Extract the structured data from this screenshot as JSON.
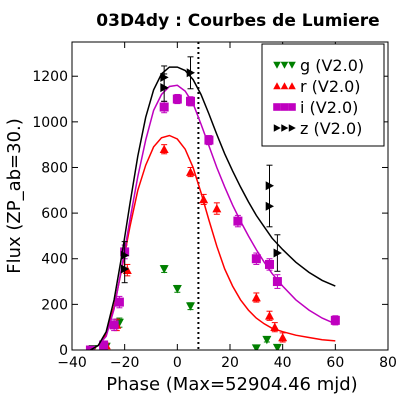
{
  "chart_data": {
    "type": "scatter",
    "title": "03D4dy : Courbes de Lumiere",
    "xlabel": "Phase (Max=52904.46 mjd)",
    "ylabel": "Flux (ZP_ab=30.)",
    "xlim": [
      -40,
      80
    ],
    "ylim": [
      0,
      1350
    ],
    "xticks": [
      -40,
      -20,
      0,
      20,
      40,
      60,
      80
    ],
    "yticks": [
      0,
      200,
      400,
      600,
      800,
      1000,
      1200
    ],
    "xtick_labels": [
      "−40",
      "−20",
      "0",
      "20",
      "40",
      "60",
      "80"
    ],
    "ytick_labels": [
      "0",
      "200",
      "400",
      "600",
      "800",
      "1000",
      "1200"
    ],
    "max_phase_line": 8,
    "grid": false,
    "legend_position": "top-right",
    "series": [
      {
        "name": "g (V2.0)",
        "color": "#008000",
        "marker": "triangle-down",
        "points": [
          [
            -32,
            5,
            6
          ],
          [
            -27,
            15,
            8
          ],
          [
            -22,
            120,
            20
          ],
          [
            -5,
            355,
            15
          ],
          [
            0,
            268,
            15
          ],
          [
            5,
            192,
            15
          ],
          [
            30,
            8,
            10
          ],
          [
            34,
            45,
            10
          ],
          [
            38,
            10,
            10
          ]
        ],
        "curve": []
      },
      {
        "name": "r (V2.0)",
        "color": "#ff0000",
        "marker": "triangle-up",
        "points": [
          [
            -32,
            0,
            8
          ],
          [
            -27,
            20,
            10
          ],
          [
            -23,
            110,
            25
          ],
          [
            -19,
            350,
            25
          ],
          [
            -5,
            880,
            20
          ],
          [
            5,
            780,
            20
          ],
          [
            10,
            660,
            22
          ],
          [
            15,
            620,
            25
          ],
          [
            30,
            230,
            20
          ],
          [
            35,
            150,
            20
          ],
          [
            37,
            100,
            20
          ],
          [
            40,
            55,
            20
          ]
        ],
        "curve": [
          [
            -33,
            0
          ],
          [
            -30,
            20
          ],
          [
            -27,
            70
          ],
          [
            -24,
            190
          ],
          [
            -21,
            360
          ],
          [
            -18,
            540
          ],
          [
            -15,
            700
          ],
          [
            -12,
            810
          ],
          [
            -9,
            890
          ],
          [
            -6,
            930
          ],
          [
            -3,
            940
          ],
          [
            0,
            925
          ],
          [
            3,
            880
          ],
          [
            6,
            800
          ],
          [
            9,
            690
          ],
          [
            12,
            570
          ],
          [
            15,
            455
          ],
          [
            18,
            355
          ],
          [
            21,
            280
          ],
          [
            24,
            220
          ],
          [
            27,
            175
          ],
          [
            30,
            140
          ],
          [
            33,
            115
          ],
          [
            36,
            95
          ],
          [
            40,
            80
          ],
          [
            45,
            65
          ],
          [
            50,
            55
          ],
          [
            55,
            45
          ],
          [
            60,
            40
          ]
        ]
      },
      {
        "name": "i (V2.0)",
        "color": "#bf00bf",
        "marker": "square",
        "points": [
          [
            -33,
            0,
            8
          ],
          [
            -28,
            22,
            10
          ],
          [
            -24,
            110,
            25
          ],
          [
            -22,
            210,
            25
          ],
          [
            -20,
            430,
            30
          ],
          [
            -5,
            1065,
            25
          ],
          [
            0,
            1100,
            20
          ],
          [
            5,
            1090,
            20
          ],
          [
            12,
            920,
            20
          ],
          [
            23,
            565,
            25
          ],
          [
            30,
            400,
            25
          ],
          [
            35,
            375,
            25
          ],
          [
            38,
            300,
            30
          ],
          [
            60,
            130,
            20
          ]
        ],
        "curve": [
          [
            -33,
            0
          ],
          [
            -30,
            20
          ],
          [
            -27,
            60
          ],
          [
            -24,
            180
          ],
          [
            -21,
            370
          ],
          [
            -18,
            570
          ],
          [
            -15,
            760
          ],
          [
            -12,
            920
          ],
          [
            -9,
            1050
          ],
          [
            -6,
            1120
          ],
          [
            -3,
            1155
          ],
          [
            0,
            1160
          ],
          [
            3,
            1135
          ],
          [
            6,
            1080
          ],
          [
            9,
            990
          ],
          [
            12,
            895
          ],
          [
            15,
            800
          ],
          [
            18,
            715
          ],
          [
            21,
            635
          ],
          [
            24,
            565
          ],
          [
            27,
            500
          ],
          [
            30,
            440
          ],
          [
            33,
            385
          ],
          [
            36,
            335
          ],
          [
            40,
            280
          ],
          [
            45,
            220
          ],
          [
            50,
            175
          ],
          [
            55,
            140
          ],
          [
            60,
            115
          ]
        ]
      },
      {
        "name": "z (V2.0)",
        "color": "#000000",
        "marker": "triangle-right",
        "points": [
          [
            -20,
            415,
            60
          ],
          [
            -20,
            355,
            60
          ],
          [
            -5,
            1150,
            60
          ],
          [
            -5,
            1195,
            50
          ],
          [
            5,
            1215,
            70
          ],
          [
            35,
            720,
            90
          ],
          [
            35,
            630,
            90
          ],
          [
            38,
            425,
            80
          ]
        ],
        "curve": [
          [
            -33,
            0
          ],
          [
            -30,
            20
          ],
          [
            -27,
            80
          ],
          [
            -24,
            220
          ],
          [
            -21,
            420
          ],
          [
            -18,
            640
          ],
          [
            -15,
            850
          ],
          [
            -12,
            1020
          ],
          [
            -9,
            1140
          ],
          [
            -6,
            1210
          ],
          [
            -3,
            1240
          ],
          [
            0,
            1240
          ],
          [
            3,
            1225
          ],
          [
            6,
            1185
          ],
          [
            9,
            1120
          ],
          [
            12,
            1035
          ],
          [
            15,
            945
          ],
          [
            18,
            860
          ],
          [
            21,
            785
          ],
          [
            24,
            715
          ],
          [
            27,
            650
          ],
          [
            30,
            590
          ],
          [
            33,
            540
          ],
          [
            36,
            490
          ],
          [
            40,
            440
          ],
          [
            45,
            385
          ],
          [
            50,
            340
          ],
          [
            55,
            305
          ],
          [
            60,
            280
          ]
        ]
      }
    ]
  }
}
